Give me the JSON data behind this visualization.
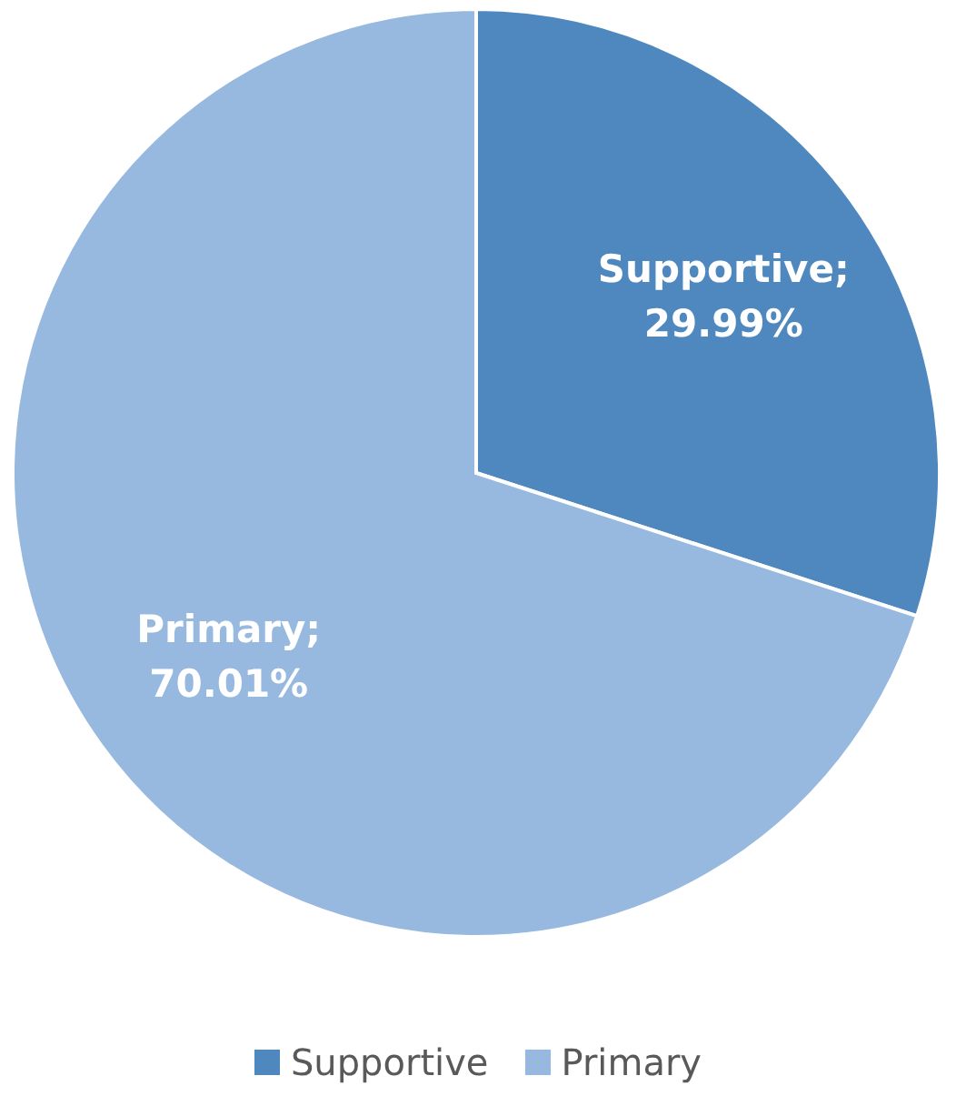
{
  "chart_data": {
    "type": "pie",
    "categories": [
      "Supportive",
      "Primary"
    ],
    "values": [
      29.99,
      70.01
    ],
    "colors": [
      "#4f88bf",
      "#97b9df"
    ],
    "value_labels": [
      "Supportive; 29.99%",
      "Primary; 70.01%"
    ],
    "legend": "bottom"
  }
}
